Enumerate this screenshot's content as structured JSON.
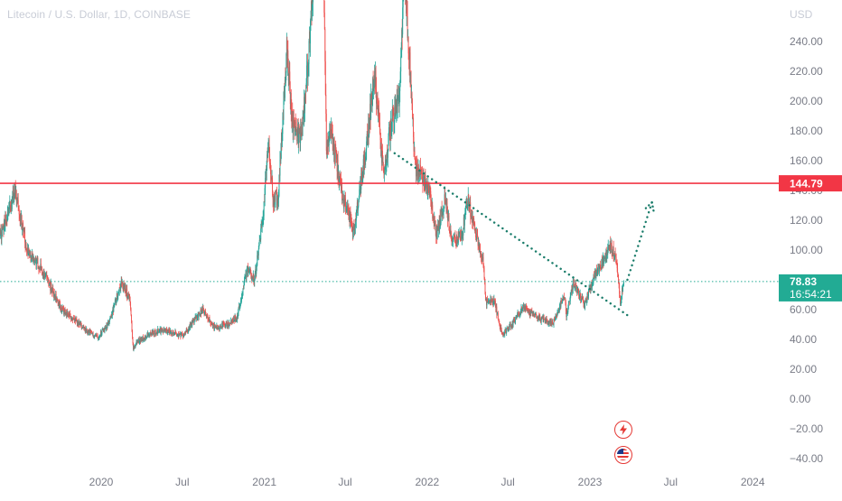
{
  "title": "Litecoin / U.S. Dollar, 1D, COINBASE",
  "colors": {
    "up": "#26a69a",
    "down": "#ef5350",
    "resistance": "#f23645",
    "current_price": "#22ab94",
    "annotation": "#1b7d6b",
    "axis_text": "#787b86",
    "title_text": "#c8ccd6"
  },
  "chart_data": {
    "type": "candlestick",
    "title": "Litecoin / U.S. Dollar, 1D, COINBASE",
    "currency_label": "USD",
    "y_ticks": [
      "240.00",
      "220.00",
      "200.00",
      "180.00",
      "160.00",
      "140.00",
      "120.00",
      "100.00",
      "60.00",
      "40.00",
      "20.00",
      "0.00",
      "−20.00",
      "−40.00"
    ],
    "y_tick_values": [
      240,
      220,
      200,
      180,
      160,
      140,
      120,
      100,
      60,
      40,
      20,
      0,
      -20,
      -40
    ],
    "x_ticks": [
      "2020",
      "Jul",
      "2021",
      "Jul",
      "2022",
      "Jul",
      "2023",
      "Jul",
      "2024"
    ],
    "x_tick_dates": [
      "2020-01-01",
      "2020-07-01",
      "2021-01-01",
      "2021-07-01",
      "2022-01-01",
      "2022-07-01",
      "2023-01-01",
      "2023-07-01",
      "2024-01-01"
    ],
    "ylim": [
      -45,
      265
    ],
    "series_path": [
      [
        "2019-05-01",
        85
      ],
      [
        "2019-05-20",
        110
      ],
      [
        "2019-06-10",
        128
      ],
      [
        "2019-06-22",
        140
      ],
      [
        "2019-07-05",
        120
      ],
      [
        "2019-07-20",
        98
      ],
      [
        "2019-08-10",
        92
      ],
      [
        "2019-09-10",
        75
      ],
      [
        "2019-10-05",
        60
      ],
      [
        "2019-10-25",
        55
      ],
      [
        "2019-12-01",
        45
      ],
      [
        "2019-12-25",
        42
      ],
      [
        "2020-01-20",
        52
      ],
      [
        "2020-02-14",
        78
      ],
      [
        "2020-03-05",
        68
      ],
      [
        "2020-03-13",
        33
      ],
      [
        "2020-03-20",
        38
      ],
      [
        "2020-04-15",
        43
      ],
      [
        "2020-05-10",
        46
      ],
      [
        "2020-06-10",
        45
      ],
      [
        "2020-07-01",
        42
      ],
      [
        "2020-07-25",
        52
      ],
      [
        "2020-08-15",
        60
      ],
      [
        "2020-09-10",
        48
      ],
      [
        "2020-10-10",
        50
      ],
      [
        "2020-11-01",
        55
      ],
      [
        "2020-11-24",
        88
      ],
      [
        "2020-12-10",
        80
      ],
      [
        "2020-12-30",
        125
      ],
      [
        "2021-01-10",
        175
      ],
      [
        "2021-01-20",
        135
      ],
      [
        "2021-02-01",
        135
      ],
      [
        "2021-02-20",
        235
      ],
      [
        "2021-03-05",
        185
      ],
      [
        "2021-03-25",
        175
      ],
      [
        "2021-04-10",
        230
      ],
      [
        "2021-05-10",
        365
      ],
      [
        "2021-05-20",
        165
      ],
      [
        "2021-06-01",
        180
      ],
      [
        "2021-06-25",
        135
      ],
      [
        "2021-07-20",
        113
      ],
      [
        "2021-08-10",
        155
      ],
      [
        "2021-08-20",
        175
      ],
      [
        "2021-09-05",
        220
      ],
      [
        "2021-09-25",
        150
      ],
      [
        "2021-10-15",
        190
      ],
      [
        "2021-11-01",
        205
      ],
      [
        "2021-11-10",
        290
      ],
      [
        "2021-11-25",
        215
      ],
      [
        "2021-12-05",
        155
      ],
      [
        "2021-12-20",
        150
      ],
      [
        "2022-01-05",
        140
      ],
      [
        "2022-01-22",
        110
      ],
      [
        "2022-02-10",
        135
      ],
      [
        "2022-02-25",
        105
      ],
      [
        "2022-03-20",
        110
      ],
      [
        "2022-04-02",
        135
      ],
      [
        "2022-04-20",
        110
      ],
      [
        "2022-05-08",
        90
      ],
      [
        "2022-05-12",
        65
      ],
      [
        "2022-06-01",
        65
      ],
      [
        "2022-06-18",
        43
      ],
      [
        "2022-07-10",
        50
      ],
      [
        "2022-08-05",
        62
      ],
      [
        "2022-09-01",
        55
      ],
      [
        "2022-10-10",
        51
      ],
      [
        "2022-11-05",
        70
      ],
      [
        "2022-11-09",
        56
      ],
      [
        "2022-11-25",
        78
      ],
      [
        "2022-12-20",
        63
      ],
      [
        "2023-01-10",
        82
      ],
      [
        "2023-02-05",
        95
      ],
      [
        "2023-02-15",
        103
      ],
      [
        "2023-03-01",
        95
      ],
      [
        "2023-03-10",
        65
      ],
      [
        "2023-03-18",
        78.83
      ]
    ],
    "resistance_level": 144.79,
    "resistance_label": "144.79",
    "current_price": 78.83,
    "current_price_label": "78.83",
    "countdown_label": "16:54:21",
    "annotations": [
      {
        "type": "dotted-trendline",
        "from": [
          "2021-10-20",
          165
        ],
        "to": [
          "2023-04-01",
          55
        ]
      },
      {
        "type": "dotted-arrow",
        "from": [
          "2023-03-26",
          80
        ],
        "to": [
          "2023-05-20",
          132
        ]
      }
    ],
    "grid": false
  }
}
